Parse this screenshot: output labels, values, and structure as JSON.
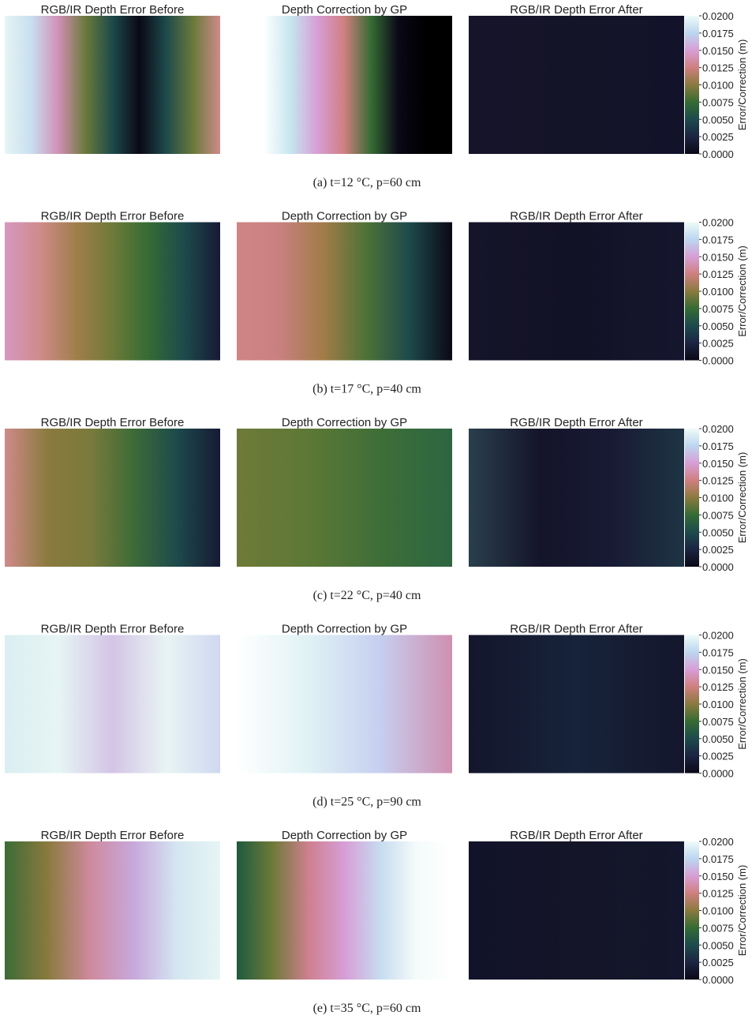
{
  "chart_data": [
    {
      "type": "heatmap",
      "panel_titles": [
        "RGB/IR Depth Error Before",
        "Depth Correction by GP",
        "RGB/IR Depth Error After"
      ],
      "caption": "(a) t=12 °C, p=60 cm",
      "colorbar_label": "Error/Correction (m)",
      "colormap": "cubehelix",
      "clim": [
        0,
        0.02
      ],
      "cticks": [
        {
          "value": 0,
          "label": "0.0000"
        },
        {
          "value": 0.0025,
          "label": "0.0025"
        },
        {
          "value": 0.005,
          "label": "0.0050"
        },
        {
          "value": 0.0075,
          "label": "0.0075"
        },
        {
          "value": 0.01,
          "label": "0.0100"
        },
        {
          "value": 0.0125,
          "label": "0.0125"
        },
        {
          "value": 0.015,
          "label": "0.0150"
        },
        {
          "value": 0.0175,
          "label": "0.0175"
        },
        {
          "value": 0.02,
          "label": "0.0200"
        }
      ]
    },
    {
      "type": "heatmap",
      "panel_titles": [
        "RGB/IR Depth Error Before",
        "Depth Correction by GP",
        "RGB/IR Depth Error After"
      ],
      "caption": "(b) t=17 °C, p=40 cm",
      "colorbar_label": "Error/Correction (m)",
      "colormap": "cubehelix",
      "clim": [
        0,
        0.02
      ],
      "cticks": [
        {
          "value": 0,
          "label": "0.0000"
        },
        {
          "value": 0.0025,
          "label": "0.0025"
        },
        {
          "value": 0.005,
          "label": "0.0050"
        },
        {
          "value": 0.0075,
          "label": "0.0075"
        },
        {
          "value": 0.01,
          "label": "0.0100"
        },
        {
          "value": 0.0125,
          "label": "0.0125"
        },
        {
          "value": 0.015,
          "label": "0.0150"
        },
        {
          "value": 0.0175,
          "label": "0.0175"
        },
        {
          "value": 0.02,
          "label": "0.0200"
        }
      ]
    },
    {
      "type": "heatmap",
      "panel_titles": [
        "RGB/IR Depth Error Before",
        "Depth Correction by GP",
        "RGB/IR Depth Error After"
      ],
      "caption": "(c) t=22 °C, p=40 cm",
      "colorbar_label": "Error/Correction (m)",
      "colormap": "cubehelix",
      "clim": [
        0,
        0.02
      ],
      "cticks": [
        {
          "value": 0,
          "label": "0.0000"
        },
        {
          "value": 0.0025,
          "label": "0.0025"
        },
        {
          "value": 0.005,
          "label": "0.0050"
        },
        {
          "value": 0.0075,
          "label": "0.0075"
        },
        {
          "value": 0.01,
          "label": "0.0100"
        },
        {
          "value": 0.0125,
          "label": "0.0125"
        },
        {
          "value": 0.015,
          "label": "0.0150"
        },
        {
          "value": 0.0175,
          "label": "0.0175"
        },
        {
          "value": 0.02,
          "label": "0.0200"
        }
      ]
    },
    {
      "type": "heatmap",
      "panel_titles": [
        "RGB/IR Depth Error Before",
        "Depth Correction by GP",
        "RGB/IR Depth Error After"
      ],
      "caption": "(d) t=25 °C, p=90 cm",
      "colorbar_label": "Error/Correction (m)",
      "colormap": "cubehelix",
      "clim": [
        0,
        0.02
      ],
      "cticks": [
        {
          "value": 0,
          "label": "0.0000"
        },
        {
          "value": 0.0025,
          "label": "0.0025"
        },
        {
          "value": 0.005,
          "label": "0.0050"
        },
        {
          "value": 0.0075,
          "label": "0.0075"
        },
        {
          "value": 0.01,
          "label": "0.0100"
        },
        {
          "value": 0.0125,
          "label": "0.0125"
        },
        {
          "value": 0.015,
          "label": "0.0150"
        },
        {
          "value": 0.0175,
          "label": "0.0175"
        },
        {
          "value": 0.02,
          "label": "0.0200"
        }
      ]
    },
    {
      "type": "heatmap",
      "panel_titles": [
        "RGB/IR Depth Error Before",
        "Depth Correction by GP",
        "RGB/IR Depth Error After"
      ],
      "caption": "(e) t=35 °C, p=60 cm",
      "colorbar_label": "Error/Correction (m)",
      "colormap": "cubehelix",
      "clim": [
        0,
        0.02
      ],
      "cticks": [
        {
          "value": 0,
          "label": "0.0000"
        },
        {
          "value": 0.0025,
          "label": "0.0025"
        },
        {
          "value": 0.005,
          "label": "0.0050"
        },
        {
          "value": 0.0075,
          "label": "0.0075"
        },
        {
          "value": 0.01,
          "label": "0.0100"
        },
        {
          "value": 0.0125,
          "label": "0.0125"
        },
        {
          "value": 0.015,
          "label": "0.0150"
        },
        {
          "value": 0.0175,
          "label": "0.0175"
        },
        {
          "value": 0.02,
          "label": "0.0200"
        }
      ]
    }
  ]
}
